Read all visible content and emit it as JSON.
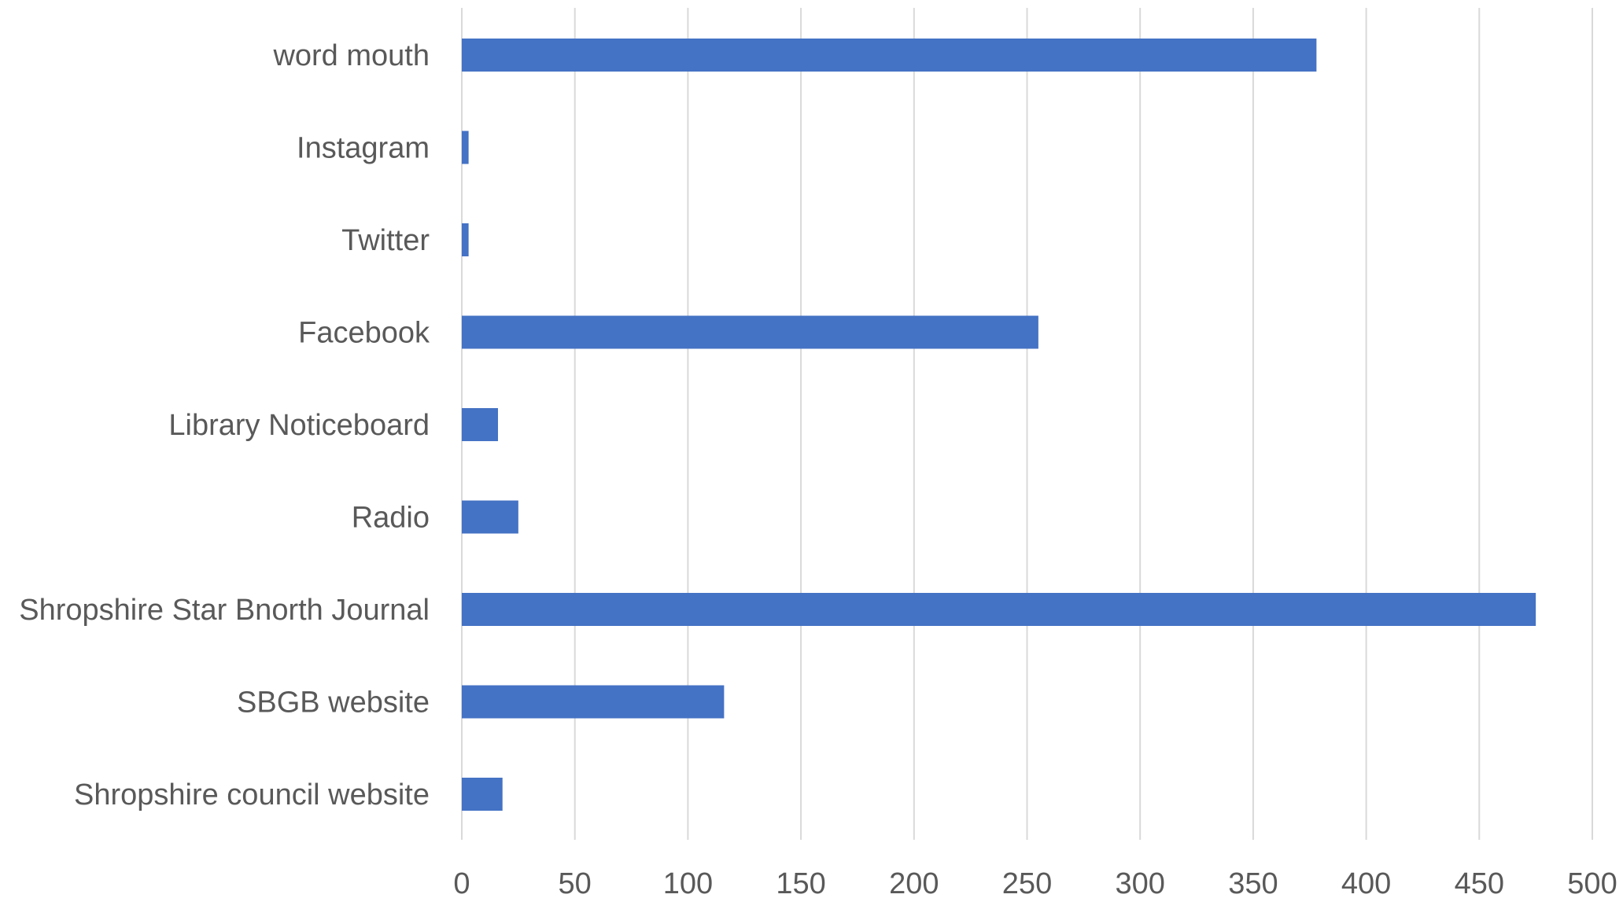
{
  "chart_data": {
    "type": "bar",
    "orientation": "horizontal",
    "categories": [
      "word mouth",
      "Instagram",
      "Twitter",
      "Facebook",
      "Library Noticeboard",
      "Radio",
      "Shropshire Star Bnorth Journal",
      "SBGB website",
      "Shropshire council website"
    ],
    "values": [
      378,
      3,
      3,
      255,
      16,
      25,
      475,
      116,
      18
    ],
    "xlim": [
      0,
      500
    ],
    "xticks": [
      "0",
      "50",
      "100",
      "150",
      "200",
      "250",
      "300",
      "350",
      "400",
      "450",
      "500"
    ],
    "grid": true,
    "bar_color": "#4472C4",
    "grid_color": "#D9D9D9",
    "label_color": "#595959",
    "title": "",
    "xlabel": "",
    "ylabel": ""
  }
}
